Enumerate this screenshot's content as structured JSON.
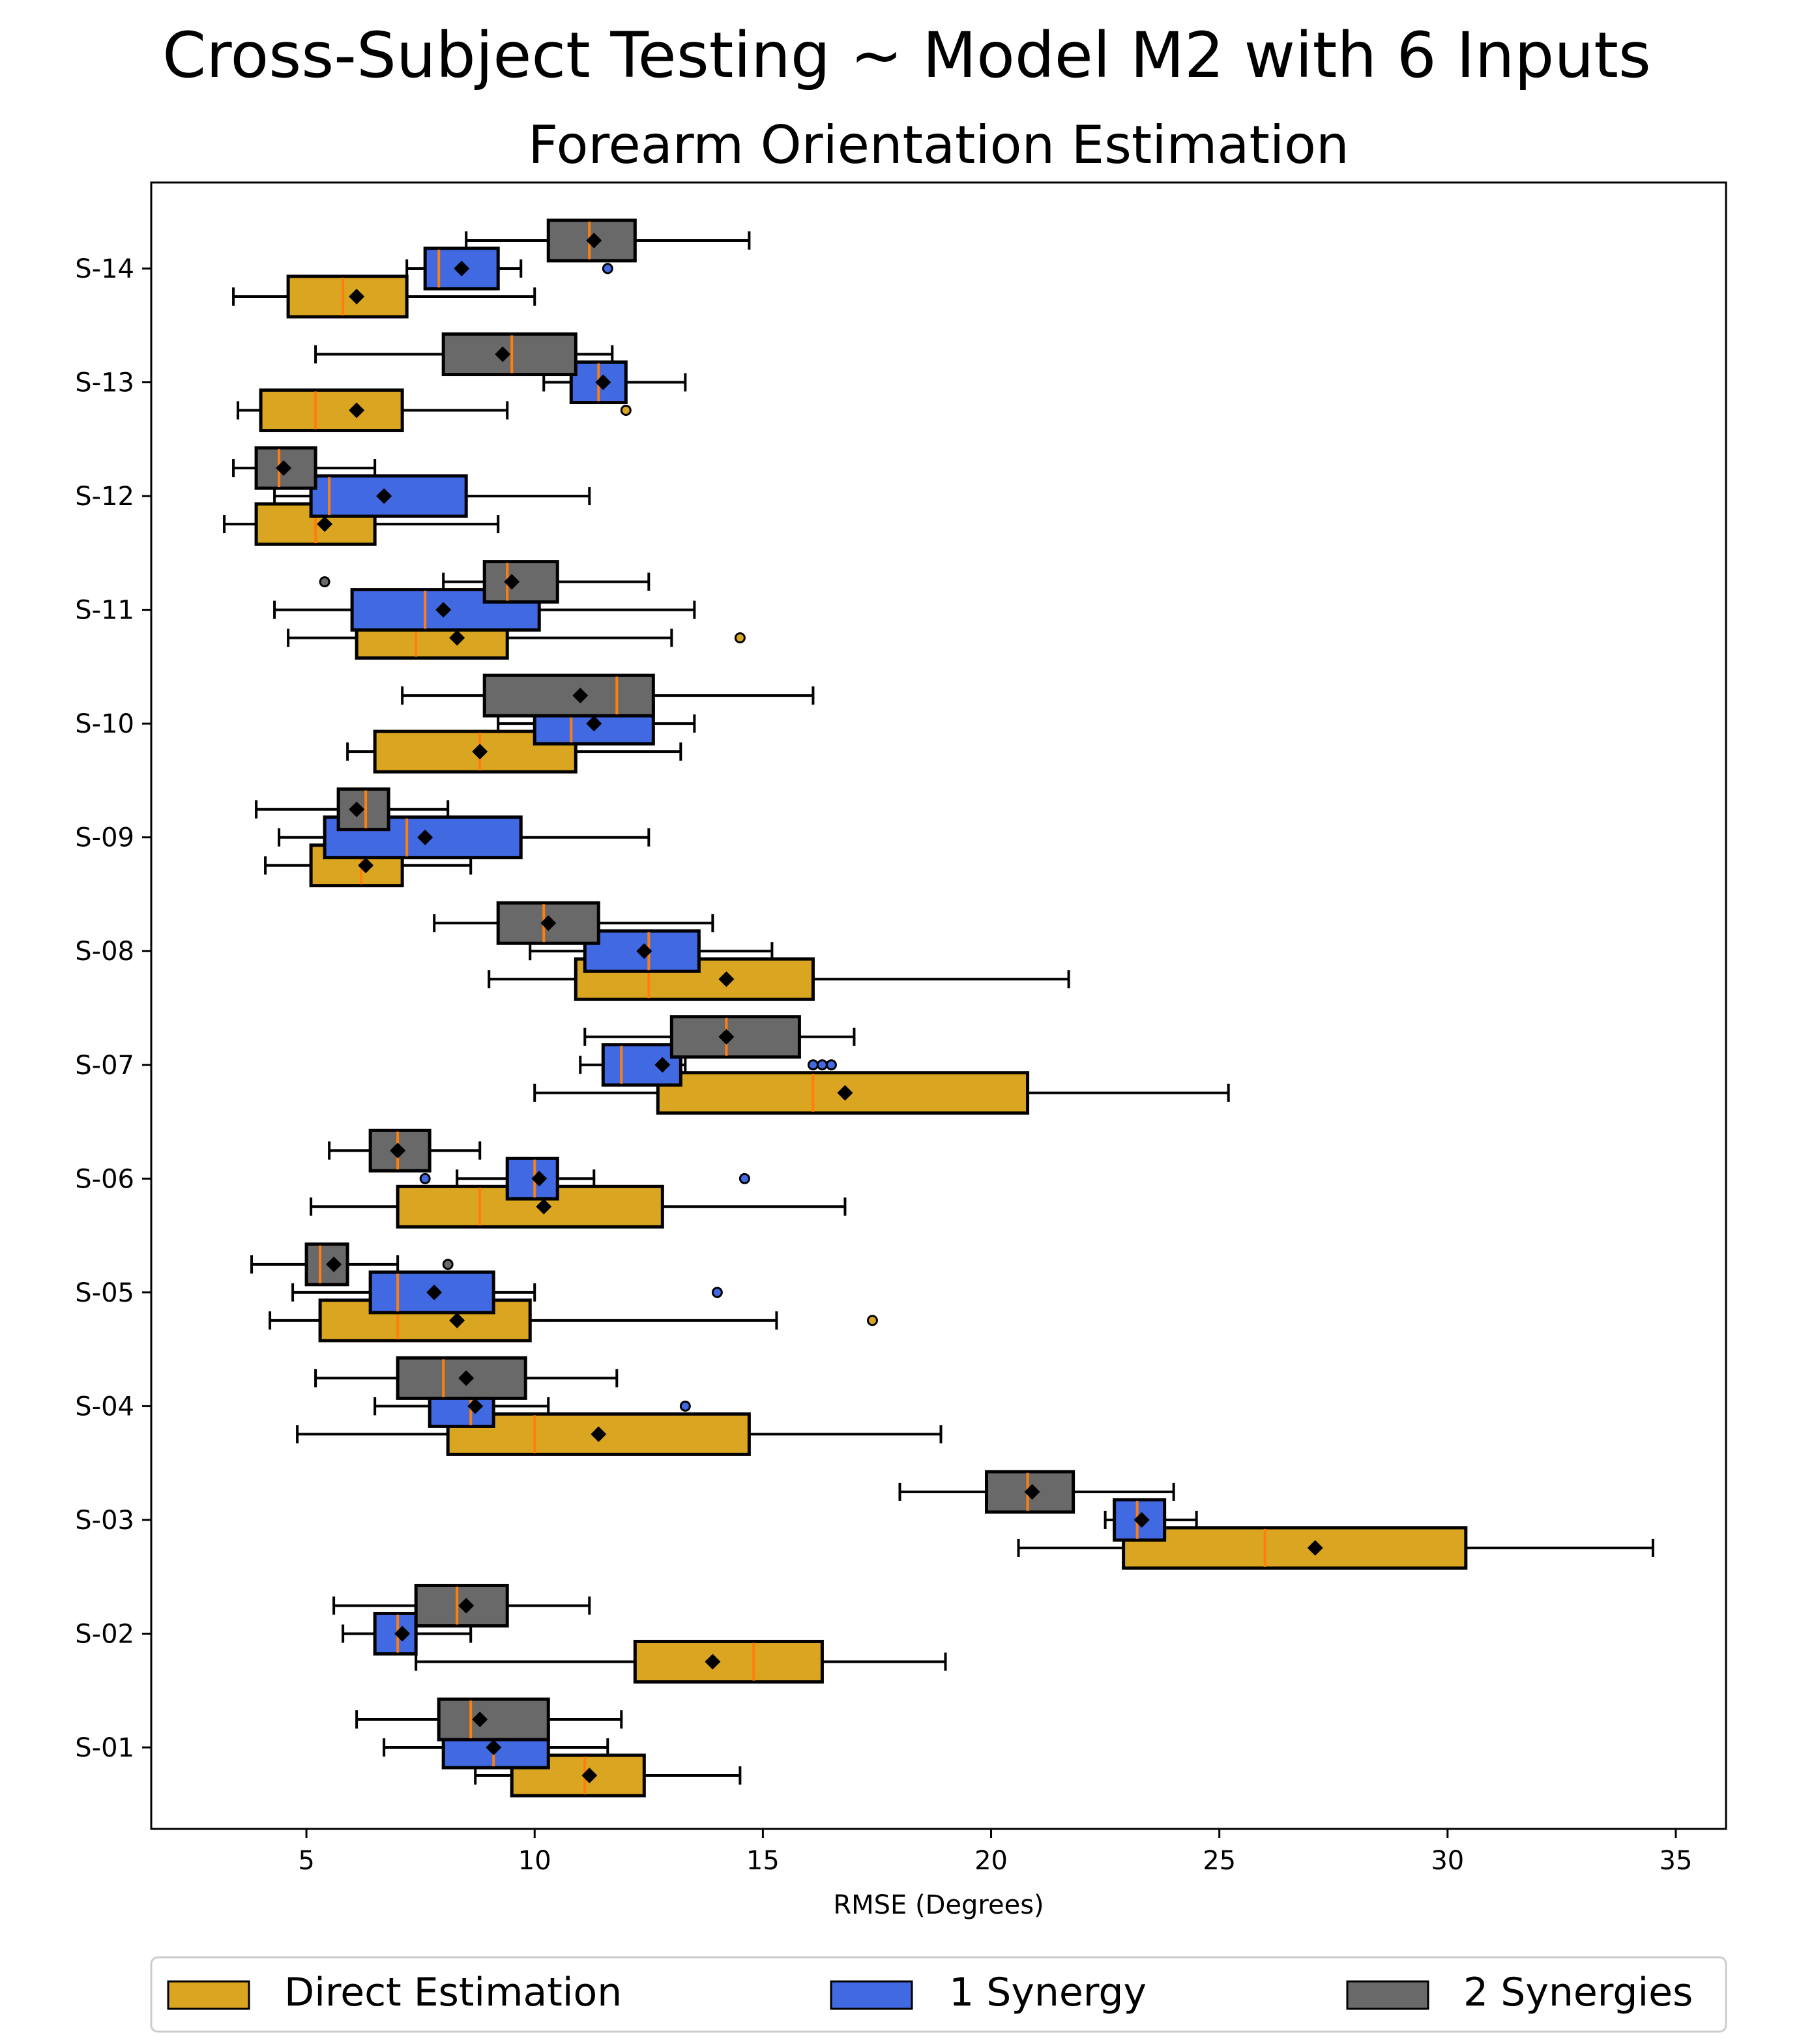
{
  "chart_data": {
    "type": "boxplot-horizontal",
    "title": "Cross-Subject Testing ~ Model M2 with 6 Inputs",
    "subtitle": "Forearm Orientation Estimation",
    "xlabel": "RMSE (Degrees)",
    "ylabel": "",
    "xlim": [
      1.6,
      36.1
    ],
    "xticks": [
      5,
      10,
      15,
      20,
      25,
      30,
      35
    ],
    "legend_placement": "bottom",
    "categories": [
      "S-01",
      "S-02",
      "S-03",
      "S-04",
      "S-05",
      "S-06",
      "S-07",
      "S-08",
      "S-09",
      "S-10",
      "S-11",
      "S-12",
      "S-13",
      "S-14"
    ],
    "series": [
      {
        "name": "Direct Estimation",
        "color": "#DAA520",
        "boxes": [
          {
            "whislo": 8.7,
            "q1": 9.5,
            "med": 11.1,
            "q3": 12.4,
            "whishi": 14.5,
            "mean": 11.2,
            "fliers": []
          },
          {
            "whislo": 7.4,
            "q1": 12.2,
            "med": 14.8,
            "q3": 16.3,
            "whishi": 19.0,
            "mean": 13.9,
            "fliers": []
          },
          {
            "whislo": 20.6,
            "q1": 22.9,
            "med": 26.0,
            "q3": 30.4,
            "whishi": 34.5,
            "mean": 27.1,
            "fliers": []
          },
          {
            "whislo": 4.8,
            "q1": 8.1,
            "med": 10.0,
            "q3": 14.7,
            "whishi": 18.9,
            "mean": 11.4,
            "fliers": []
          },
          {
            "whislo": 4.2,
            "q1": 5.3,
            "med": 7.0,
            "q3": 9.9,
            "whishi": 15.3,
            "mean": 8.3,
            "fliers": [
              17.4
            ]
          },
          {
            "whislo": 5.1,
            "q1": 7.0,
            "med": 8.8,
            "q3": 12.8,
            "whishi": 16.8,
            "mean": 10.2,
            "fliers": []
          },
          {
            "whislo": 10.0,
            "q1": 12.7,
            "med": 16.1,
            "q3": 20.8,
            "whishi": 25.2,
            "mean": 16.8,
            "fliers": []
          },
          {
            "whislo": 9.0,
            "q1": 10.9,
            "med": 12.5,
            "q3": 16.1,
            "whishi": 21.7,
            "mean": 14.2,
            "fliers": []
          },
          {
            "whislo": 4.1,
            "q1": 5.1,
            "med": 6.2,
            "q3": 7.1,
            "whishi": 8.6,
            "mean": 6.3,
            "fliers": []
          },
          {
            "whislo": 5.9,
            "q1": 6.5,
            "med": 8.8,
            "q3": 10.9,
            "whishi": 13.2,
            "mean": 8.8,
            "fliers": []
          },
          {
            "whislo": 4.6,
            "q1": 6.1,
            "med": 7.4,
            "q3": 9.4,
            "whishi": 13.0,
            "mean": 8.3,
            "fliers": [
              14.5
            ]
          },
          {
            "whislo": 3.2,
            "q1": 3.9,
            "med": 5.2,
            "q3": 6.5,
            "whishi": 9.2,
            "mean": 5.4,
            "fliers": []
          },
          {
            "whislo": 3.5,
            "q1": 4.0,
            "med": 5.2,
            "q3": 7.1,
            "whishi": 9.4,
            "mean": 6.1,
            "fliers": [
              12.0
            ]
          },
          {
            "whislo": 3.4,
            "q1": 4.6,
            "med": 5.8,
            "q3": 7.2,
            "whishi": 10.0,
            "mean": 6.1,
            "fliers": []
          }
        ]
      },
      {
        "name": "1 Synergy",
        "color": "#4169E1",
        "boxes": [
          {
            "whislo": 6.7,
            "q1": 8.0,
            "med": 9.1,
            "q3": 10.3,
            "whishi": 11.6,
            "mean": 9.1,
            "fliers": []
          },
          {
            "whislo": 5.8,
            "q1": 6.5,
            "med": 7.0,
            "q3": 7.4,
            "whishi": 8.6,
            "mean": 7.1,
            "fliers": []
          },
          {
            "whislo": 22.5,
            "q1": 22.7,
            "med": 23.2,
            "q3": 23.8,
            "whishi": 24.5,
            "mean": 23.3,
            "fliers": []
          },
          {
            "whislo": 6.5,
            "q1": 7.7,
            "med": 8.6,
            "q3": 9.1,
            "whishi": 10.3,
            "mean": 8.7,
            "fliers": [
              13.3
            ]
          },
          {
            "whislo": 4.7,
            "q1": 6.4,
            "med": 7.0,
            "q3": 9.1,
            "whishi": 10.0,
            "mean": 7.8,
            "fliers": [
              14.0
            ]
          },
          {
            "whislo": 8.3,
            "q1": 9.4,
            "med": 10.0,
            "q3": 10.5,
            "whishi": 11.3,
            "mean": 10.1,
            "fliers": [
              7.6,
              14.6
            ]
          },
          {
            "whislo": 11.0,
            "q1": 11.5,
            "med": 11.9,
            "q3": 13.2,
            "whishi": 13.3,
            "mean": 12.8,
            "fliers": [
              16.1,
              16.3,
              16.5
            ]
          },
          {
            "whislo": 9.9,
            "q1": 11.1,
            "med": 12.5,
            "q3": 13.6,
            "whishi": 15.2,
            "mean": 12.4,
            "fliers": []
          },
          {
            "whislo": 4.4,
            "q1": 5.4,
            "med": 7.2,
            "q3": 9.7,
            "whishi": 12.5,
            "mean": 7.6,
            "fliers": []
          },
          {
            "whislo": 9.2,
            "q1": 10.0,
            "med": 10.8,
            "q3": 12.6,
            "whishi": 13.5,
            "mean": 11.3,
            "fliers": []
          },
          {
            "whislo": 4.3,
            "q1": 6.0,
            "med": 7.6,
            "q3": 10.1,
            "whishi": 13.5,
            "mean": 8.0,
            "fliers": []
          },
          {
            "whislo": 4.3,
            "q1": 5.1,
            "med": 5.5,
            "q3": 8.5,
            "whishi": 11.2,
            "mean": 6.7,
            "fliers": []
          },
          {
            "whislo": 10.2,
            "q1": 10.8,
            "med": 11.4,
            "q3": 12.0,
            "whishi": 13.3,
            "mean": 11.5,
            "fliers": []
          },
          {
            "whislo": 7.2,
            "q1": 7.6,
            "med": 7.9,
            "q3": 9.2,
            "whishi": 9.7,
            "mean": 8.4,
            "fliers": [
              11.6
            ]
          }
        ]
      },
      {
        "name": "2 Synergies",
        "color": "#696969",
        "boxes": [
          {
            "whislo": 6.1,
            "q1": 7.9,
            "med": 8.6,
            "q3": 10.3,
            "whishi": 11.9,
            "mean": 8.8,
            "fliers": []
          },
          {
            "whislo": 5.6,
            "q1": 7.4,
            "med": 8.3,
            "q3": 9.4,
            "whishi": 11.2,
            "mean": 8.5,
            "fliers": []
          },
          {
            "whislo": 18.0,
            "q1": 19.9,
            "med": 20.8,
            "q3": 21.8,
            "whishi": 24.0,
            "mean": 20.9,
            "fliers": []
          },
          {
            "whislo": 5.2,
            "q1": 7.0,
            "med": 8.0,
            "q3": 9.8,
            "whishi": 11.8,
            "mean": 8.5,
            "fliers": []
          },
          {
            "whislo": 3.8,
            "q1": 5.0,
            "med": 5.3,
            "q3": 5.9,
            "whishi": 7.0,
            "mean": 5.6,
            "fliers": [
              8.1
            ]
          },
          {
            "whislo": 5.5,
            "q1": 6.4,
            "med": 7.0,
            "q3": 7.7,
            "whishi": 8.8,
            "mean": 7.0,
            "fliers": []
          },
          {
            "whislo": 11.1,
            "q1": 13.0,
            "med": 14.2,
            "q3": 15.8,
            "whishi": 17.0,
            "mean": 14.2,
            "fliers": []
          },
          {
            "whislo": 7.8,
            "q1": 9.2,
            "med": 10.2,
            "q3": 11.4,
            "whishi": 13.9,
            "mean": 10.3,
            "fliers": []
          },
          {
            "whislo": 3.9,
            "q1": 5.7,
            "med": 6.3,
            "q3": 6.8,
            "whishi": 8.1,
            "mean": 6.1,
            "fliers": []
          },
          {
            "whislo": 7.1,
            "q1": 8.9,
            "med": 11.8,
            "q3": 12.6,
            "whishi": 16.1,
            "mean": 11.0,
            "fliers": []
          },
          {
            "whislo": 8.0,
            "q1": 8.9,
            "med": 9.4,
            "q3": 10.5,
            "whishi": 12.5,
            "mean": 9.5,
            "fliers": [
              5.4
            ]
          },
          {
            "whislo": 3.4,
            "q1": 3.9,
            "med": 4.4,
            "q3": 5.2,
            "whishi": 6.5,
            "mean": 4.5,
            "fliers": []
          },
          {
            "whislo": 5.2,
            "q1": 8.0,
            "med": 9.5,
            "q3": 10.9,
            "whishi": 11.7,
            "mean": 9.3,
            "fliers": []
          },
          {
            "whislo": 8.5,
            "q1": 10.3,
            "med": 11.2,
            "q3": 12.2,
            "whishi": 14.7,
            "mean": 11.3,
            "fliers": []
          }
        ]
      }
    ],
    "median_color": "#FF7F0E",
    "mean_marker_color": "#000000"
  }
}
